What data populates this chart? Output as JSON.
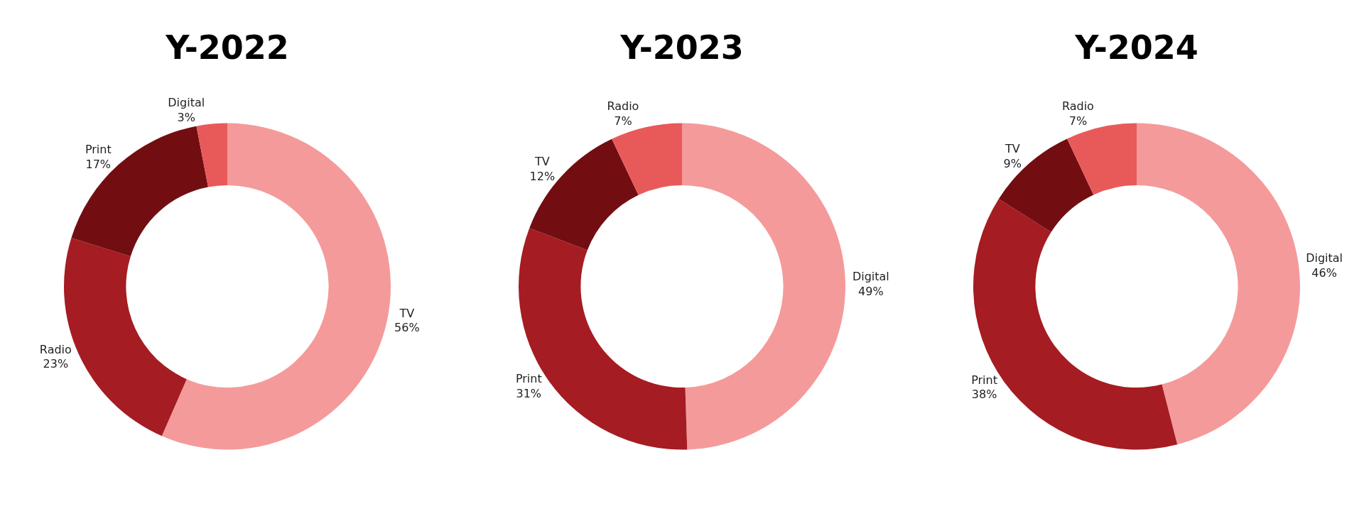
{
  "chart_data": [
    {
      "type": "donut",
      "title": "Y-2022",
      "categories": [
        "TV",
        "Radio",
        "Print",
        "Digital"
      ],
      "values": [
        56,
        23,
        17,
        3
      ],
      "value_labels": [
        "56%",
        "23%",
        "17%",
        "3%"
      ],
      "colors": [
        "#f49a9a",
        "#a51c22",
        "#720e12",
        "#e85a5a"
      ],
      "legend": false
    },
    {
      "type": "donut",
      "title": "Y-2023",
      "categories": [
        "Digital",
        "Print",
        "TV",
        "Radio"
      ],
      "values": [
        49,
        31,
        12,
        7
      ],
      "value_labels": [
        "49%",
        "31%",
        "12%",
        "7%"
      ],
      "colors": [
        "#f49a9a",
        "#a51c22",
        "#720e12",
        "#e85a5a"
      ],
      "legend": false
    },
    {
      "type": "donut",
      "title": "Y-2024",
      "categories": [
        "Digital",
        "Print",
        "TV",
        "Radio"
      ],
      "values": [
        46,
        38,
        9,
        7
      ],
      "value_labels": [
        "46%",
        "38%",
        "9%",
        "7%"
      ],
      "colors": [
        "#f49a9a",
        "#a51c22",
        "#720e12",
        "#e85a5a"
      ],
      "legend": false
    }
  ]
}
